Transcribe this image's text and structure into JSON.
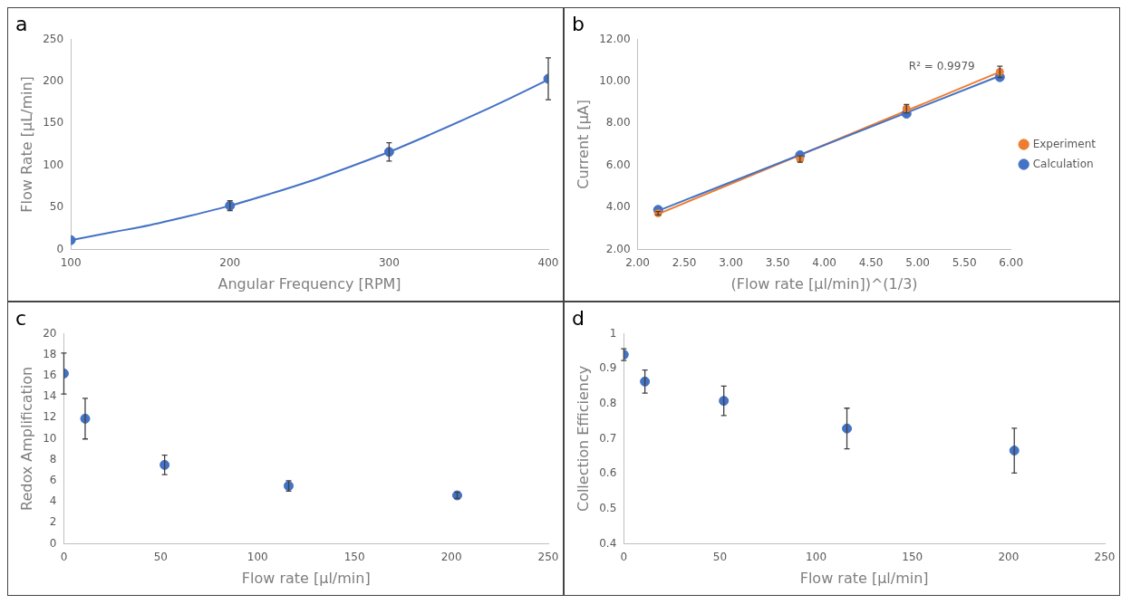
{
  "chart_data": [
    {
      "type": "scatter",
      "title": "a",
      "xlabel": "Angular Frequency [RPM]",
      "ylabel": "Flow Rate [µL/min]",
      "xlim": [
        100,
        400
      ],
      "xticks": [
        100,
        200,
        300,
        400
      ],
      "ylim": [
        0,
        250
      ],
      "yticks": [
        0,
        50,
        100,
        150,
        200,
        250
      ],
      "grid": false,
      "legend": false,
      "series": [
        {
          "type": "line",
          "color": "#4472c4",
          "marker": "none",
          "line_style": "solid",
          "x": [
            100,
            125,
            150,
            175,
            200,
            225,
            250,
            275,
            300,
            325,
            350,
            375,
            400
          ],
          "values": [
            11,
            20,
            29,
            40,
            52,
            66,
            81,
            98,
            116,
            136,
            157,
            179,
            202
          ]
        },
        {
          "type": "scatter",
          "color": "#4472c4",
          "marker": "circle",
          "x": [
            100,
            200,
            300,
            400
          ],
          "values": [
            11,
            52,
            116,
            203
          ],
          "errors": [
            null,
            6,
            11,
            25
          ]
        }
      ]
    },
    {
      "type": "scatter",
      "title": "b",
      "xlabel": "(Flow rate [µl/min])^(1/3)",
      "ylabel": "Current [µA]",
      "xlim": [
        2,
        6
      ],
      "xticks": [
        {
          "value": 2,
          "label": "2.00"
        },
        {
          "value": 2.5,
          "label": "2.50"
        },
        {
          "value": 3,
          "label": "3.00"
        },
        {
          "value": 3.5,
          "label": "3.50"
        },
        {
          "value": 4,
          "label": "4.00"
        },
        {
          "value": 4.5,
          "label": "4.50"
        },
        {
          "value": 5,
          "label": "5.00"
        },
        {
          "value": 5.5,
          "label": "5.50"
        },
        {
          "value": 6,
          "label": "6.00"
        }
      ],
      "ylim": [
        2,
        12
      ],
      "yticks": [
        {
          "value": 2,
          "label": "2.00"
        },
        {
          "value": 4,
          "label": "4.00"
        },
        {
          "value": 6,
          "label": "6.00"
        },
        {
          "value": 8,
          "label": "8.00"
        },
        {
          "value": 10,
          "label": "10.00"
        },
        {
          "value": 12,
          "label": "12.00"
        }
      ],
      "grid": false,
      "legend": "right",
      "annotations": [
        "R² = 0.9979"
      ],
      "series": [
        {
          "type": "line",
          "color": "#4472c4",
          "line_style": "solid",
          "x": [
            2.22,
            5.88
          ],
          "values": [
            3.84,
            10.26
          ]
        },
        {
          "type": "line",
          "color": "#ed7d31",
          "line_style": "solid",
          "x": [
            2.22,
            5.88
          ],
          "values": [
            3.68,
            10.45
          ]
        },
        {
          "type": "scatter",
          "name": "Calculation",
          "color": "#4472c4",
          "marker": "circle",
          "x": [
            2.22,
            3.74,
            4.88,
            5.88
          ],
          "values": [
            3.88,
            6.48,
            8.46,
            10.2
          ]
        },
        {
          "type": "scatter",
          "name": "Experiment",
          "color": "#ed7d31",
          "marker": "circle",
          "x": [
            2.22,
            3.74,
            4.88,
            5.88
          ],
          "values": [
            3.72,
            6.3,
            8.7,
            10.45
          ],
          "errors": [
            0.08,
            0.15,
            0.2,
            0.27
          ]
        }
      ]
    },
    {
      "type": "scatter",
      "title": "c",
      "xlabel": "Flow rate [µl/min]",
      "ylabel": "Redox Amplification",
      "xlim": [
        0,
        250
      ],
      "xticks": [
        0,
        50,
        100,
        150,
        200,
        250
      ],
      "ylim": [
        0,
        20
      ],
      "yticks": [
        0,
        2,
        4,
        6,
        8,
        10,
        12,
        14,
        16,
        18,
        20
      ],
      "grid": false,
      "legend": false,
      "series": [
        {
          "type": "scatter",
          "color": "#4472c4",
          "marker": "circle",
          "x": [
            0,
            11,
            52,
            116,
            203
          ],
          "values": [
            16.2,
            11.9,
            7.5,
            5.5,
            4.6
          ],
          "errors": [
            1.95,
            1.93,
            0.93,
            0.5,
            0.3
          ]
        }
      ]
    },
    {
      "type": "scatter",
      "title": "d",
      "xlabel": "Flow rate [µl/min]",
      "ylabel": "Collection Efficiency",
      "xlim": [
        0,
        250
      ],
      "xticks": [
        0,
        50,
        100,
        150,
        200,
        250
      ],
      "ylim": [
        0.4,
        1
      ],
      "yticks": [
        0.4,
        0.5,
        0.6,
        0.7,
        0.8,
        0.9,
        1
      ],
      "grid": false,
      "legend": false,
      "series": [
        {
          "type": "scatter",
          "color": "#4472c4",
          "marker": "circle",
          "x": [
            0,
            11,
            52,
            116,
            203
          ],
          "values": [
            0.94,
            0.863,
            0.808,
            0.729,
            0.666
          ],
          "errors": [
            0.017,
            0.033,
            0.042,
            0.058,
            0.064
          ]
        }
      ]
    }
  ]
}
